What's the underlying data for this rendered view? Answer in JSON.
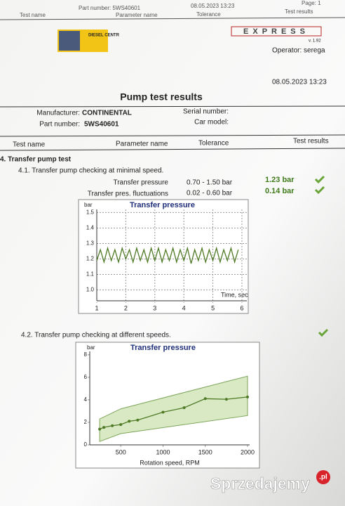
{
  "header_strip": {
    "part_number": "Part number: 5WS40601",
    "date": "08.05.2023  13:23",
    "page": "Page: 1",
    "columns": [
      "Test name",
      "Parameter name",
      "Tolerance",
      "Test results"
    ]
  },
  "logos": {
    "diesel": "DIESEL CENTR",
    "express": "EXPRESS",
    "version": "v. 1.92",
    "operator": "Operator: serega"
  },
  "date": "08.05.2023  13:23",
  "title": "Pump test results",
  "info": {
    "manufacturer_label": "Manufacturer:",
    "manufacturer": "CONTINENTAL",
    "part_label": "Part number:",
    "part": "5WS40601",
    "serial_label": "Serial number:",
    "car_label": "Car model:"
  },
  "columns": [
    "Test name",
    "Parameter name",
    "Tolerance",
    "Test results"
  ],
  "section": "4. Transfer pump test",
  "test1": {
    "title": "4.1. Transfer pump checking at minimal speed.",
    "rows": [
      {
        "param": "Transfer pressure",
        "tolerance": "0.70 - 1.50 bar",
        "result": "1.23 bar"
      },
      {
        "param": "Transfer pres. fluctuations",
        "tolerance": "0.02 - 0.60 bar",
        "result": "0.14 bar"
      }
    ]
  },
  "test2": {
    "title": "4.2. Transfer pump checking at different speeds."
  },
  "chart_data": [
    {
      "type": "line",
      "title": "Transfer pressure",
      "y_unit": "bar",
      "x_label": "Time, sec",
      "color": "#4f7a26",
      "grid": true,
      "marker": false,
      "x": [
        1,
        1.125,
        1.25,
        1.375,
        1.5,
        1.625,
        1.75,
        1.875,
        2,
        2.125,
        2.25,
        2.375,
        2.5,
        2.625,
        2.75,
        2.875,
        3,
        3.125,
        3.25,
        3.375,
        3.5,
        3.625,
        3.75,
        3.875,
        4,
        4.125,
        4.25,
        4.375,
        4.5,
        4.625,
        4.75,
        4.875,
        5,
        5.125,
        5.25,
        5.375,
        5.5,
        5.625,
        5.75,
        5.875
      ],
      "values": [
        1.19,
        1.26,
        1.18,
        1.27,
        1.19,
        1.26,
        1.18,
        1.27,
        1.2,
        1.26,
        1.18,
        1.27,
        1.19,
        1.26,
        1.18,
        1.27,
        1.19,
        1.27,
        1.18,
        1.26,
        1.19,
        1.27,
        1.18,
        1.26,
        1.19,
        1.27,
        1.17,
        1.26,
        1.19,
        1.27,
        1.18,
        1.26,
        1.19,
        1.27,
        1.18,
        1.26,
        1.19,
        1.27,
        1.18,
        1.26
      ],
      "xlim": [
        1,
        6.17
      ],
      "xticks": [
        1,
        2,
        3,
        4,
        5,
        6
      ],
      "ylim": [
        0.93,
        1.52
      ],
      "yticks": [
        {
          "value": 1,
          "label": "1.0"
        },
        1.1,
        1.2,
        1.3,
        1.4,
        1.5
      ]
    },
    {
      "type": "line",
      "title": "Transfer pressure",
      "y_unit": "bar",
      "x_label": "Rotation speed, RPM",
      "color": "#4f7a26",
      "grid": false,
      "marker": true,
      "x": [
        250,
        300,
        400,
        500,
        600,
        700,
        1000,
        1250,
        1500,
        1750,
        2000
      ],
      "values": [
        1.4,
        1.55,
        1.7,
        1.8,
        2.1,
        2.2,
        2.9,
        3.3,
        4.1,
        4.05,
        4.25
      ],
      "band": {
        "x": [
          250,
          500,
          2000
        ],
        "lower": [
          0.3,
          1,
          2.6
        ],
        "upper": [
          2.3,
          3.2,
          6.1
        ],
        "color": "#cfe3b4"
      },
      "xlim": [
        133,
        2025
      ],
      "xticks": [
        500,
        1000,
        1500,
        2000
      ],
      "ylim": [
        0,
        8.3
      ],
      "yticks": [
        0,
        2,
        4,
        6,
        8
      ]
    }
  ],
  "watermark": {
    "text": "Sprzedajemy",
    "suffix": ".pl"
  }
}
